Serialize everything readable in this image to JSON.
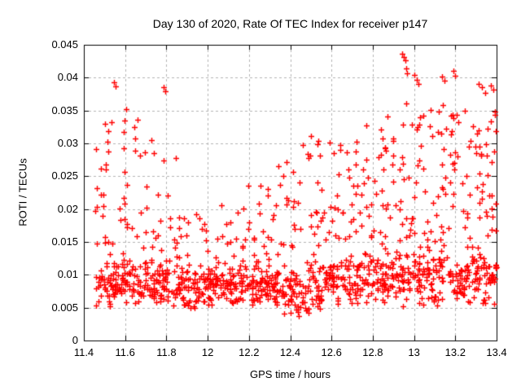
{
  "chart_data": {
    "type": "scatter",
    "title": "Day 130 of 2020, Rate Of TEC Index for receiver p147",
    "xlabel": "GPS time / hours",
    "ylabel": "ROTI / TECUs",
    "xlim": [
      11.4,
      13.4
    ],
    "ylim": [
      0,
      0.045
    ],
    "xticks": [
      "11.4",
      "11.6",
      "11.8",
      "12",
      "12.2",
      "12.4",
      "12.6",
      "12.8",
      "13",
      "13.2",
      "13.4"
    ],
    "yticks": [
      "0",
      "0.005",
      "0.01",
      "0.015",
      "0.02",
      "0.025",
      "0.03",
      "0.035",
      "0.04",
      "0.045"
    ],
    "grid": true,
    "grid_style": "dashed",
    "legend": "none",
    "marker": "plus",
    "marker_size_px": 7,
    "marker_color": "#ff0000",
    "grid_color": "#b3b3b3",
    "axis_color": "#000000",
    "background": "#ffffff",
    "x_data_start": 11.45,
    "x_data_end": 13.4,
    "y_data_min": 0.0031,
    "y_data_max": 0.0436,
    "description": "Dense band of ROTI values 0.005-0.013 across all times; enhanced activity up to 0.033-0.040 near 11.5-11.8, moderate 12.4-12.9, strongest 0.038-0.0436 between 12.9 and 13.4.",
    "series": [
      {
        "name": "ROTI",
        "clusters": [
          {
            "x": [
              11.45,
              11.56
            ],
            "core_n": 48,
            "core_y": [
              0.0043,
              0.013
            ],
            "mid_n": 16,
            "mid_y": [
              0.013,
              0.028
            ],
            "high_n": 6,
            "high_y": [
              0.028,
              0.0335
            ],
            "peaks": [
              [
                11.545,
                0.0393
              ],
              [
                11.552,
                0.0387
              ]
            ]
          },
          {
            "x": [
              11.56,
              11.66
            ],
            "core_n": 46,
            "core_y": [
              0.005,
              0.013
            ],
            "mid_n": 12,
            "mid_y": [
              0.013,
              0.026
            ],
            "high_n": 8,
            "high_y": [
              0.0285,
              0.0355
            ],
            "peaks": []
          },
          {
            "x": [
              11.66,
              11.76
            ],
            "core_n": 46,
            "core_y": [
              0.005,
              0.013
            ],
            "mid_n": 10,
            "mid_y": [
              0.013,
              0.0265
            ],
            "high_n": 4,
            "high_y": [
              0.027,
              0.0325
            ],
            "peaks": []
          },
          {
            "x": [
              11.76,
              11.86
            ],
            "core_n": 46,
            "core_y": [
              0.005,
              0.013
            ],
            "mid_n": 8,
            "mid_y": [
              0.013,
              0.024
            ],
            "high_n": 2,
            "high_y": [
              0.027,
              0.0295
            ],
            "peaks": [
              [
                11.787,
                0.0385
              ],
              [
                11.793,
                0.0379
              ]
            ]
          },
          {
            "x": [
              11.86,
              11.96
            ],
            "core_n": 50,
            "core_y": [
              0.0045,
              0.0128
            ],
            "mid_n": 8,
            "mid_y": [
              0.0128,
              0.0215
            ],
            "high_n": 0,
            "high_y": [
              0,
              0
            ],
            "peaks": []
          },
          {
            "x": [
              11.96,
              12.06
            ],
            "core_n": 50,
            "core_y": [
              0.005,
              0.0125
            ],
            "mid_n": 8,
            "mid_y": [
              0.0125,
              0.0205
            ],
            "high_n": 0,
            "high_y": [
              0,
              0
            ],
            "peaks": []
          },
          {
            "x": [
              12.06,
              12.16
            ],
            "core_n": 50,
            "core_y": [
              0.005,
              0.0125
            ],
            "mid_n": 9,
            "mid_y": [
              0.0125,
              0.021
            ],
            "high_n": 0,
            "high_y": [
              0,
              0
            ],
            "peaks": []
          },
          {
            "x": [
              12.16,
              12.26
            ],
            "core_n": 50,
            "core_y": [
              0.005,
              0.013
            ],
            "mid_n": 11,
            "mid_y": [
              0.013,
              0.0215
            ],
            "high_n": 2,
            "high_y": [
              0.0235,
              0.0255
            ],
            "peaks": []
          },
          {
            "x": [
              12.26,
              12.36
            ],
            "core_n": 48,
            "core_y": [
              0.005,
              0.013
            ],
            "mid_n": 10,
            "mid_y": [
              0.013,
              0.022
            ],
            "high_n": 4,
            "high_y": [
              0.022,
              0.027
            ],
            "peaks": []
          },
          {
            "x": [
              12.36,
              12.46
            ],
            "core_n": 48,
            "core_y": [
              0.0032,
              0.013
            ],
            "mid_n": 12,
            "mid_y": [
              0.013,
              0.024
            ],
            "high_n": 4,
            "high_y": [
              0.024,
              0.0285
            ],
            "peaks": []
          },
          {
            "x": [
              12.46,
              12.56
            ],
            "core_n": 45,
            "core_y": [
              0.004,
              0.013
            ],
            "mid_n": 12,
            "mid_y": [
              0.013,
              0.026
            ],
            "high_n": 8,
            "high_y": [
              0.0275,
              0.0335
            ],
            "peaks": []
          },
          {
            "x": [
              12.56,
              12.66
            ],
            "core_n": 45,
            "core_y": [
              0.005,
              0.013
            ],
            "mid_n": 12,
            "mid_y": [
              0.013,
              0.025
            ],
            "high_n": 5,
            "high_y": [
              0.025,
              0.0305
            ],
            "peaks": []
          },
          {
            "x": [
              12.66,
              12.76
            ],
            "core_n": 45,
            "core_y": [
              0.005,
              0.014
            ],
            "mid_n": 14,
            "mid_y": [
              0.014,
              0.025
            ],
            "high_n": 6,
            "high_y": [
              0.025,
              0.031
            ],
            "peaks": []
          },
          {
            "x": [
              12.76,
              12.86
            ],
            "core_n": 45,
            "core_y": [
              0.005,
              0.014
            ],
            "mid_n": 15,
            "mid_y": [
              0.014,
              0.026
            ],
            "high_n": 8,
            "high_y": [
              0.026,
              0.0335
            ],
            "peaks": []
          },
          {
            "x": [
              12.86,
              12.96
            ],
            "core_n": 45,
            "core_y": [
              0.005,
              0.015
            ],
            "mid_n": 15,
            "mid_y": [
              0.015,
              0.028
            ],
            "high_n": 6,
            "high_y": [
              0.028,
              0.035
            ],
            "peaks": [
              [
                12.942,
                0.0436
              ],
              [
                12.95,
                0.0431
              ],
              [
                12.957,
                0.0427
              ],
              [
                12.962,
                0.0414
              ],
              [
                12.968,
                0.0406
              ]
            ]
          },
          {
            "x": [
              12.96,
              13.06
            ],
            "core_n": 45,
            "core_y": [
              0.005,
              0.015
            ],
            "mid_n": 16,
            "mid_y": [
              0.015,
              0.028
            ],
            "high_n": 8,
            "high_y": [
              0.028,
              0.037
            ],
            "peaks": [
              [
                13.0,
                0.0404
              ],
              [
                13.012,
                0.0397
              ],
              [
                13.02,
                0.0391
              ]
            ]
          },
          {
            "x": [
              13.06,
              13.16
            ],
            "core_n": 45,
            "core_y": [
              0.005,
              0.015
            ],
            "mid_n": 16,
            "mid_y": [
              0.015,
              0.03
            ],
            "high_n": 8,
            "high_y": [
              0.03,
              0.036
            ],
            "peaks": [
              [
                13.135,
                0.0402
              ],
              [
                13.148,
                0.0396
              ]
            ]
          },
          {
            "x": [
              13.16,
              13.26
            ],
            "core_n": 45,
            "core_y": [
              0.005,
              0.015
            ],
            "mid_n": 16,
            "mid_y": [
              0.015,
              0.03
            ],
            "high_n": 8,
            "high_y": [
              0.028,
              0.0355
            ],
            "peaks": [
              [
                13.19,
                0.041
              ],
              [
                13.2,
                0.0403
              ]
            ]
          },
          {
            "x": [
              13.26,
              13.36
            ],
            "core_n": 45,
            "core_y": [
              0.005,
              0.015
            ],
            "mid_n": 16,
            "mid_y": [
              0.015,
              0.03
            ],
            "high_n": 10,
            "high_y": [
              0.028,
              0.035
            ],
            "peaks": [
              [
                13.315,
                0.0391
              ],
              [
                13.328,
                0.0386
              ],
              [
                13.343,
                0.0377
              ]
            ]
          },
          {
            "x": [
              13.36,
              13.4
            ],
            "core_n": 22,
            "core_y": [
              0.005,
              0.015
            ],
            "mid_n": 8,
            "mid_y": [
              0.015,
              0.028
            ],
            "high_n": 5,
            "high_y": [
              0.028,
              0.0355
            ],
            "peaks": [
              [
                13.373,
                0.0388
              ],
              [
                13.383,
                0.0382
              ]
            ]
          }
        ]
      }
    ]
  }
}
